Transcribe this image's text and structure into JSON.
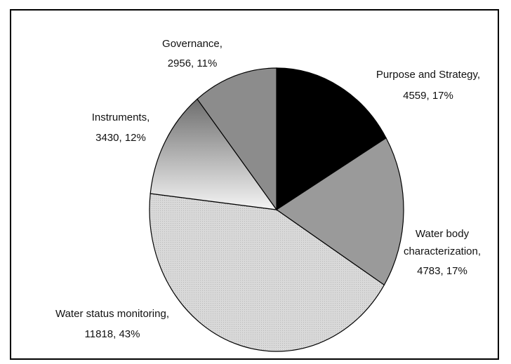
{
  "chart_data": {
    "type": "pie",
    "slices": [
      {
        "label": "Purpose and Strategy,",
        "value": 4559,
        "percent": "17%",
        "value_text": "4559, 17%",
        "color": "#000000"
      },
      {
        "label": "Water body",
        "label2": "characterization,",
        "value": 4783,
        "percent": "17%",
        "value_text": "4783, 17%",
        "color": "#9a9a9a"
      },
      {
        "label": "Water status monitoring,",
        "value": 11818,
        "percent": "43%",
        "value_text": "11818, 43%",
        "color": "#d6d6d6"
      },
      {
        "label": "Instruments,",
        "value": 3430,
        "percent": "12%",
        "value_text": "3430, 12%",
        "color": "gradient"
      },
      {
        "label": "Governance,",
        "value": 2956,
        "percent": "11%",
        "value_text": "2956, 11%",
        "color": "#8c8c8c"
      }
    ],
    "start_angle": "12 o'clock",
    "direction": "clockwise",
    "legend": "none"
  }
}
